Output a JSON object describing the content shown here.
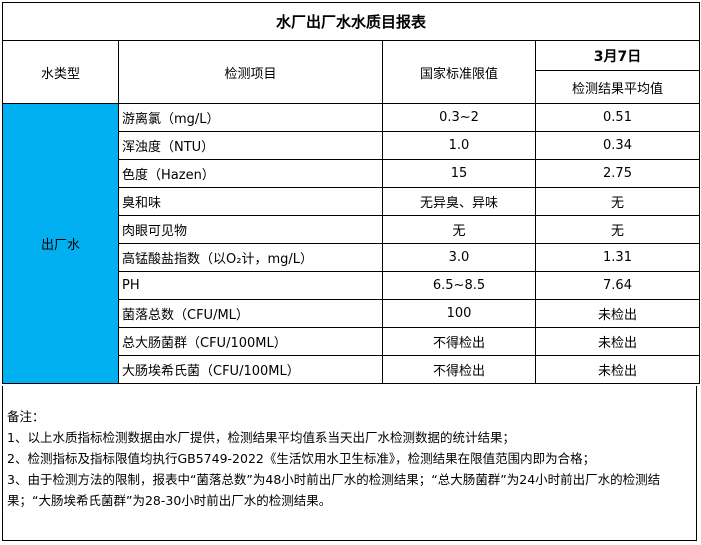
{
  "title": "水厂出厂水水质目报表",
  "headers": {
    "type": "水类型",
    "item": "检测项目",
    "limit": "国家标准限值",
    "date": "3月7日",
    "result": "检测结果平均值"
  },
  "water_type": "出厂水",
  "rows": [
    {
      "item": "游离氯（mg/L）",
      "limit": "0.3~2",
      "result": "0.51"
    },
    {
      "item": "浑浊度（NTU）",
      "limit": "1.0",
      "result": "0.34"
    },
    {
      "item": "色度（Hazen）",
      "limit": "15",
      "result": "2.75"
    },
    {
      "item": "臭和味",
      "limit": "无异臭、异味",
      "result": "无"
    },
    {
      "item": "肉眼可见物",
      "limit": "无",
      "result": "无"
    },
    {
      "item": "高锰酸盐指数（以O₂计，mg/L）",
      "limit": "3.0",
      "result": "1.31"
    },
    {
      "item": "PH",
      "limit": "6.5~8.5",
      "result": "7.64"
    },
    {
      "item": "菌落总数（CFU/ML）",
      "limit": "100",
      "result": "未检出"
    },
    {
      "item": "总大肠菌群（CFU/100ML）",
      "limit": "不得检出",
      "result": "未检出"
    },
    {
      "item": "大肠埃希氏菌（CFU/100ML）",
      "limit": "不得检出",
      "result": "未检出"
    }
  ],
  "notes": [
    "备注：",
    "1、以上水质指标检测数据由水厂提供，检测结果平均值系当天出厂水检测数据的统计结果；",
    "2、检测指标及指标限值均执行GB5749-2022《生活饮用水卫生标准》，检测结果在限值范围内即为合格；",
    "3、由于检测方法的限制，报表中“菌落总数”为48小时前出厂水的检测结果；“总大肠菌群”为24小时前出厂水的检测结果；“大肠埃希氏菌群”为28-30小时前出厂水的检测结果。"
  ],
  "colors": {
    "water_type_bg": "#00b0f0"
  }
}
